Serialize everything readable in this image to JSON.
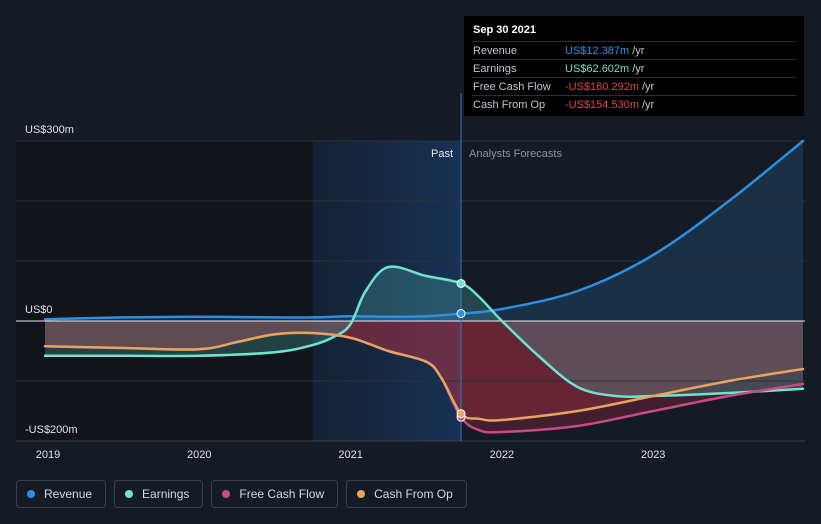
{
  "chart_data": {
    "type": "line",
    "y_axis_labels": [
      "US$300m",
      "US$0",
      "-US$200m"
    ],
    "x_tick_labels": [
      "2019",
      "2020",
      "2021",
      "2022",
      "2023"
    ],
    "ylim": [
      -200,
      300
    ],
    "xlim": [
      2018.98,
      2023.99
    ],
    "period_labels": {
      "past": "Past",
      "forecast": "Analysts Forecasts"
    },
    "divider_x": 2021.73,
    "highlight_start_x": 2020.75,
    "series": [
      {
        "name": "Revenue",
        "color": "#2e8fe2",
        "x": [
          2018.98,
          2019.5,
          2020.0,
          2020.5,
          2020.75,
          2021.0,
          2021.25,
          2021.5,
          2021.73,
          2022.0,
          2022.5,
          2023.0,
          2023.5,
          2023.99
        ],
        "values": [
          3,
          6,
          7,
          6,
          6,
          8,
          7,
          8,
          12.4,
          20,
          50,
          110,
          200,
          300
        ]
      },
      {
        "name": "Earnings",
        "color": "#6fe3d0",
        "x": [
          2018.98,
          2019.5,
          2020.0,
          2020.5,
          2020.75,
          2020.9,
          2021.0,
          2021.1,
          2021.25,
          2021.5,
          2021.73,
          2021.85,
          2022.0,
          2022.25,
          2022.5,
          2022.75,
          2023.0,
          2023.5,
          2023.99
        ],
        "values": [
          -58,
          -58,
          -58,
          -52,
          -40,
          -25,
          -5,
          50,
          90,
          75,
          62.6,
          40,
          0,
          -60,
          -110,
          -125,
          -125,
          -120,
          -113
        ]
      },
      {
        "name": "Free Cash Flow",
        "color": "#c94b86",
        "x": [
          2018.98,
          2019.5,
          2020.0,
          2020.25,
          2020.5,
          2020.75,
          2021.0,
          2021.25,
          2021.5,
          2021.6,
          2021.73,
          2021.85,
          2022.0,
          2022.5,
          2023.0,
          2023.5,
          2023.99
        ],
        "values": [
          -42,
          -45,
          -47,
          -35,
          -22,
          -20,
          -28,
          -50,
          -68,
          -95,
          -160.3,
          -182,
          -185,
          -175,
          -150,
          -125,
          -105
        ]
      },
      {
        "name": "Cash From Op",
        "color": "#e7a461",
        "x": [
          2018.98,
          2019.5,
          2020.0,
          2020.25,
          2020.5,
          2020.75,
          2021.0,
          2021.25,
          2021.5,
          2021.6,
          2021.73,
          2021.85,
          2022.0,
          2022.5,
          2023.0,
          2023.5,
          2023.99
        ],
        "values": [
          -42,
          -45,
          -47,
          -35,
          -22,
          -20,
          -28,
          -50,
          -68,
          -95,
          -154.5,
          -163,
          -165,
          -150,
          -125,
          -100,
          -80
        ]
      }
    ]
  },
  "tooltip": {
    "date": "Sep 30 2021",
    "rows": [
      {
        "label": "Revenue",
        "value": "US$12.387m",
        "unit": "/yr",
        "color": "#2e8fe2"
      },
      {
        "label": "Earnings",
        "value": "US$62.602m",
        "unit": "/yr",
        "color": "#6fe3d0"
      },
      {
        "label": "Free Cash Flow",
        "value": "-US$160.292m",
        "unit": "/yr",
        "color": "#e0454b"
      },
      {
        "label": "Cash From Op",
        "value": "-US$154.530m",
        "unit": "/yr",
        "color": "#e0454b"
      }
    ]
  },
  "legend": [
    {
      "label": "Revenue",
      "color": "#2e8fe2"
    },
    {
      "label": "Earnings",
      "color": "#6fe3d0"
    },
    {
      "label": "Free Cash Flow",
      "color": "#c94b86"
    },
    {
      "label": "Cash From Op",
      "color": "#e7a461"
    }
  ]
}
